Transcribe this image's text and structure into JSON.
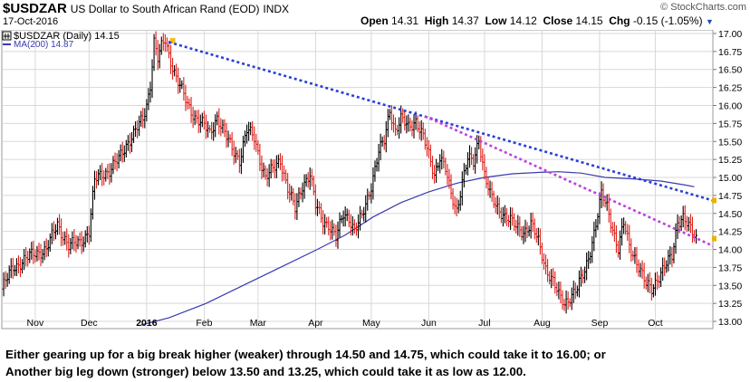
{
  "header": {
    "symbol": "$USDZAR",
    "description": "US Dollar to South African Rand (EOD)",
    "exchange": "INDX",
    "date": "17-Oct-2016",
    "brand": "© StockCharts.com",
    "open_label": "Open",
    "open": "14.31",
    "high_label": "High",
    "high": "14.37",
    "low_label": "Low",
    "low": "14.12",
    "close_label": "Close",
    "close": "14.15",
    "chg_label": "Chg",
    "chg": "-0.15 (-1.05%)"
  },
  "legend": {
    "price": "$USDZAR (Daily) 14.15",
    "ma": "MA(200) 14.87"
  },
  "caption": {
    "line1": "Either gearing up for a big break higher (weaker) through 14.50 and 14.75, which could take it to 16.00; or",
    "line2": "Another big leg down (stronger) below 13.50 and 13.25, which could take it as low as 12.00."
  },
  "colors": {
    "up": "#000000",
    "down": "#e0201b",
    "ma": "#3a3ab0",
    "trend_blue": "#2a3fd6",
    "trend_magenta": "#c040e0",
    "grid": "#d8d8d8"
  },
  "chart_data": {
    "type": "ohlc-line",
    "ylim": [
      12.9,
      17.05
    ],
    "y_ticks": [
      "17.00",
      "16.75",
      "16.50",
      "16.25",
      "16.00",
      "15.75",
      "15.50",
      "15.25",
      "15.00",
      "14.75",
      "14.50",
      "14.25",
      "14.00",
      "13.75",
      "13.50",
      "13.25",
      "13.00"
    ],
    "x_labels": [
      "Nov",
      "Dec",
      "2016",
      "Feb",
      "Mar",
      "Apr",
      "May",
      "Jun",
      "Jul",
      "Aug",
      "Sep",
      "Oct"
    ],
    "x_label_days": [
      18,
      47,
      78,
      109,
      138,
      169,
      199,
      230,
      260,
      291,
      322,
      352
    ],
    "day_range": [
      0,
      383
    ],
    "last_price": 14.15,
    "close_anchors": [
      [
        0,
        13.45
      ],
      [
        6,
        13.75
      ],
      [
        12,
        13.85
      ],
      [
        18,
        13.95
      ],
      [
        24,
        14.0
      ],
      [
        30,
        14.35
      ],
      [
        36,
        14.05
      ],
      [
        42,
        14.1
      ],
      [
        47,
        14.25
      ],
      [
        50,
        14.95
      ],
      [
        54,
        15.05
      ],
      [
        58,
        15.1
      ],
      [
        63,
        15.25
      ],
      [
        68,
        15.5
      ],
      [
        72,
        15.65
      ],
      [
        76,
        15.8
      ],
      [
        78,
        16.0
      ],
      [
        80,
        16.3
      ],
      [
        82,
        16.9
      ],
      [
        84,
        16.65
      ],
      [
        86,
        16.8
      ],
      [
        88,
        16.9
      ],
      [
        90,
        16.7
      ],
      [
        94,
        16.4
      ],
      [
        97,
        16.2
      ],
      [
        100,
        16.0
      ],
      [
        104,
        15.85
      ],
      [
        108,
        15.75
      ],
      [
        112,
        15.6
      ],
      [
        116,
        15.85
      ],
      [
        120,
        15.6
      ],
      [
        124,
        15.4
      ],
      [
        128,
        15.25
      ],
      [
        132,
        15.65
      ],
      [
        136,
        15.55
      ],
      [
        138,
        15.35
      ],
      [
        142,
        15.0
      ],
      [
        146,
        15.1
      ],
      [
        150,
        15.25
      ],
      [
        154,
        14.85
      ],
      [
        158,
        14.55
      ],
      [
        162,
        14.9
      ],
      [
        166,
        15.05
      ],
      [
        169,
        14.6
      ],
      [
        173,
        14.4
      ],
      [
        176,
        14.35
      ],
      [
        180,
        14.15
      ],
      [
        184,
        14.5
      ],
      [
        187,
        14.45
      ],
      [
        190,
        14.25
      ],
      [
        194,
        14.45
      ],
      [
        199,
        14.9
      ],
      [
        203,
        15.35
      ],
      [
        206,
        15.5
      ],
      [
        209,
        15.95
      ],
      [
        212,
        15.65
      ],
      [
        215,
        15.8
      ],
      [
        219,
        15.7
      ],
      [
        223,
        15.8
      ],
      [
        227,
        15.55
      ],
      [
        230,
        15.3
      ],
      [
        233,
        15.05
      ],
      [
        236,
        15.3
      ],
      [
        239,
        15.1
      ],
      [
        242,
        14.75
      ],
      [
        245,
        14.55
      ],
      [
        248,
        14.95
      ],
      [
        251,
        15.25
      ],
      [
        254,
        15.2
      ],
      [
        257,
        15.55
      ],
      [
        260,
        15.05
      ],
      [
        263,
        14.75
      ],
      [
        266,
        14.6
      ],
      [
        270,
        14.5
      ],
      [
        274,
        14.4
      ],
      [
        277,
        14.3
      ],
      [
        281,
        14.25
      ],
      [
        285,
        14.35
      ],
      [
        289,
        14.1
      ],
      [
        293,
        13.75
      ],
      [
        297,
        13.55
      ],
      [
        300,
        13.35
      ],
      [
        303,
        13.25
      ],
      [
        306,
        13.35
      ],
      [
        310,
        13.45
      ],
      [
        314,
        13.7
      ],
      [
        317,
        14.0
      ],
      [
        320,
        14.35
      ],
      [
        323,
        14.75
      ],
      [
        326,
        14.6
      ],
      [
        329,
        14.3
      ],
      [
        332,
        14.0
      ],
      [
        335,
        14.35
      ],
      [
        338,
        14.05
      ],
      [
        341,
        13.9
      ],
      [
        344,
        13.7
      ],
      [
        347,
        13.5
      ],
      [
        350,
        13.45
      ],
      [
        353,
        13.6
      ],
      [
        357,
        13.75
      ],
      [
        361,
        13.9
      ],
      [
        364,
        14.4
      ],
      [
        367,
        14.45
      ],
      [
        370,
        14.3
      ],
      [
        374,
        14.15
      ]
    ],
    "ma200": [
      [
        75,
        12.95
      ],
      [
        90,
        13.05
      ],
      [
        110,
        13.25
      ],
      [
        130,
        13.5
      ],
      [
        150,
        13.75
      ],
      [
        170,
        14.0
      ],
      [
        185,
        14.2
      ],
      [
        200,
        14.45
      ],
      [
        215,
        14.65
      ],
      [
        230,
        14.8
      ],
      [
        245,
        14.92
      ],
      [
        260,
        15.0
      ],
      [
        275,
        15.05
      ],
      [
        290,
        15.07
      ],
      [
        300,
        15.08
      ],
      [
        312,
        15.06
      ],
      [
        325,
        15.0
      ],
      [
        340,
        14.98
      ],
      [
        355,
        14.95
      ],
      [
        367,
        14.9
      ],
      [
        373,
        14.87
      ]
    ],
    "trendlines": [
      {
        "color": "blue",
        "from": [
          90,
          16.88
        ],
        "to": [
          383,
          14.68
        ]
      },
      {
        "color": "magenta",
        "from": [
          228,
          15.85
        ],
        "to": [
          383,
          14.05
        ]
      }
    ]
  }
}
